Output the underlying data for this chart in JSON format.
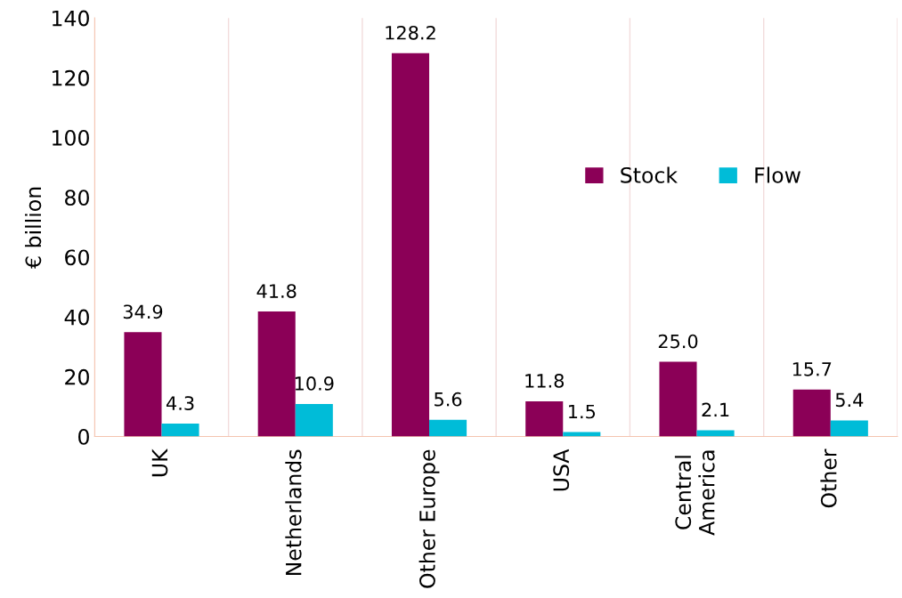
{
  "chart_data": {
    "type": "bar",
    "ylabel": "€ billion",
    "categories": [
      "UK",
      "Netherlands",
      "Other Europe",
      "USA",
      "Central\nAmerica",
      "Other"
    ],
    "series": [
      {
        "name": "Stock",
        "color": "#8b0057",
        "values": [
          34.9,
          41.8,
          128.2,
          11.8,
          25.0,
          15.7
        ],
        "value_labels": [
          "34.9",
          "41.8",
          "128.2",
          "11.8",
          "25.0",
          "15.7"
        ]
      },
      {
        "name": "Flow",
        "color": "#00bcd8",
        "values": [
          4.3,
          10.9,
          5.6,
          1.5,
          2.1,
          5.4
        ],
        "value_labels": [
          "4.3",
          "10.9",
          "5.6",
          "1.5",
          "2.1",
          "5.4"
        ]
      }
    ],
    "ylim": [
      0,
      140
    ],
    "yticks": [
      0,
      20,
      40,
      60,
      80,
      100,
      120,
      140
    ],
    "grid": "x",
    "legend": "right"
  }
}
